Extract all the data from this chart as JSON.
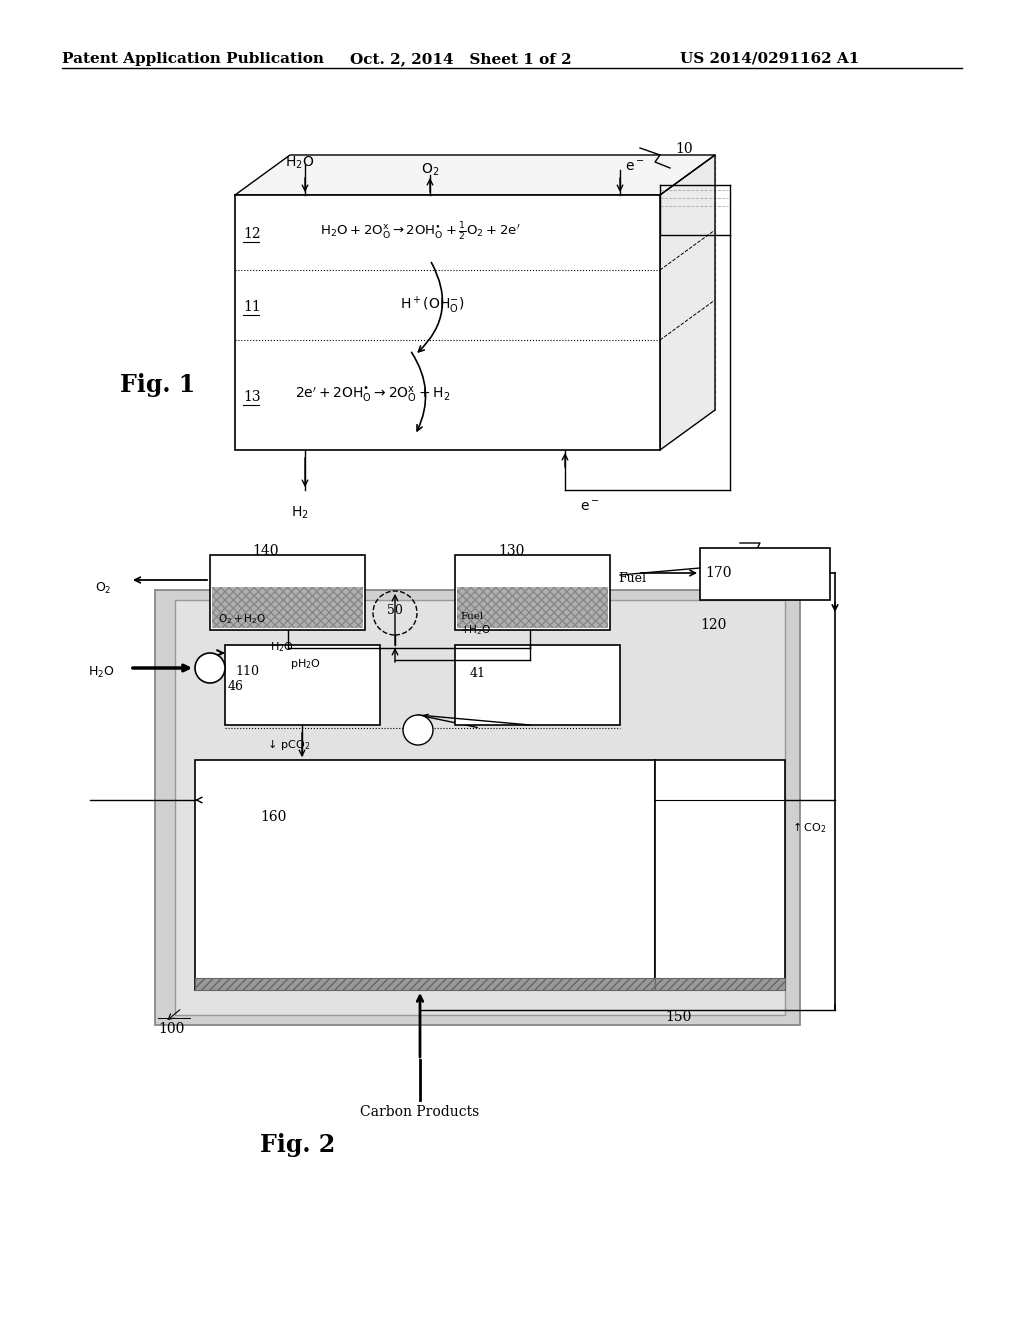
{
  "header_left": "Patent Application Publication",
  "header_mid": "Oct. 2, 2014   Sheet 1 of 2",
  "header_right": "US 2014/0291162 A1",
  "fig1_label": "Fig. 1",
  "fig2_label": "Fig. 2",
  "bg_color": "#ffffff",
  "line_color": "#000000",
  "gray_shade": "#d0d0d0",
  "light_gray": "#e2e2e2"
}
